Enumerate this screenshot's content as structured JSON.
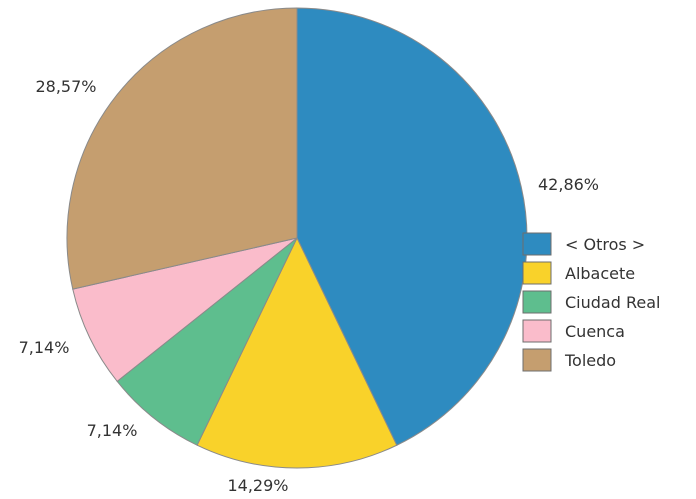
{
  "chart_data": {
    "type": "pie",
    "title": "",
    "categories": [
      "< Otros >",
      "Albacete",
      "Ciudad Real",
      "Cuenca",
      "Toledo"
    ],
    "values": [
      42.86,
      14.29,
      7.14,
      7.14,
      28.57
    ],
    "value_labels": [
      "42,86%",
      "14,29%",
      "7,14%",
      "7,14%",
      "28,57%"
    ],
    "colors": [
      "#2E8BC0",
      "#F9D22A",
      "#5EBE8E",
      "#FABCCB",
      "#C59E6F"
    ],
    "start_angle_deg": 0,
    "direction": "clockwise",
    "legend": {
      "position": "right",
      "entries": [
        "< Otros >",
        "Albacete",
        "Ciudad Real",
        "Cuenca",
        "Toledo"
      ]
    },
    "slice_edge_color": "#8a8a8a"
  }
}
